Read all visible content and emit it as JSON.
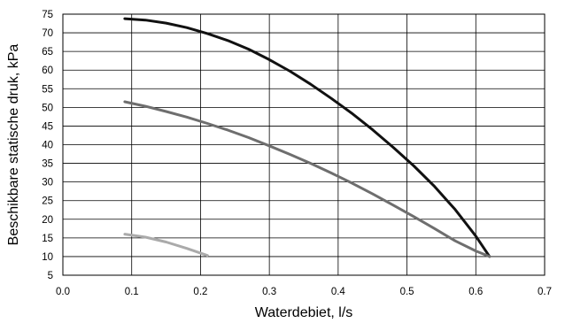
{
  "chart_data": {
    "type": "line",
    "title": "",
    "xlabel": "Waterdebiet, l/s",
    "ylabel": "Beschikbare statische druk, kPa",
    "xlim": [
      0.0,
      0.7
    ],
    "ylim": [
      5,
      75
    ],
    "x_ticks": [
      "0.0",
      "0.1",
      "0.2",
      "0.3",
      "0.4",
      "0.5",
      "0.6",
      "0.7"
    ],
    "y_ticks": [
      "5",
      "10",
      "15",
      "20",
      "25",
      "30",
      "35",
      "40",
      "45",
      "50",
      "55",
      "60",
      "65",
      "70",
      "75"
    ],
    "grid": true,
    "series": [
      {
        "color": "#111111",
        "x": [
          0.09,
          0.12,
          0.15,
          0.18,
          0.21,
          0.24,
          0.27,
          0.3,
          0.33,
          0.36,
          0.39,
          0.42,
          0.45,
          0.48,
          0.51,
          0.54,
          0.57,
          0.6,
          0.62
        ],
        "y": [
          73.8,
          73.4,
          72.6,
          71.4,
          69.8,
          67.9,
          65.6,
          62.8,
          59.7,
          56.2,
          52.4,
          48.4,
          44.0,
          39.3,
          34.3,
          28.8,
          22.6,
          15.5,
          10.0
        ]
      },
      {
        "color": "#6e6e6e",
        "x": [
          0.09,
          0.12,
          0.15,
          0.18,
          0.21,
          0.24,
          0.27,
          0.3,
          0.33,
          0.36,
          0.39,
          0.42,
          0.45,
          0.48,
          0.51,
          0.54,
          0.57,
          0.6,
          0.62
        ],
        "y": [
          51.5,
          50.3,
          48.9,
          47.4,
          45.7,
          43.9,
          41.9,
          39.7,
          37.4,
          35.0,
          32.4,
          29.7,
          26.8,
          23.8,
          20.7,
          17.5,
          14.2,
          11.5,
          10.0
        ]
      },
      {
        "color": "#aaaaaa",
        "x": [
          0.09,
          0.12,
          0.15,
          0.18,
          0.21
        ],
        "y": [
          16.0,
          15.2,
          13.9,
          12.2,
          10.3
        ]
      }
    ]
  }
}
